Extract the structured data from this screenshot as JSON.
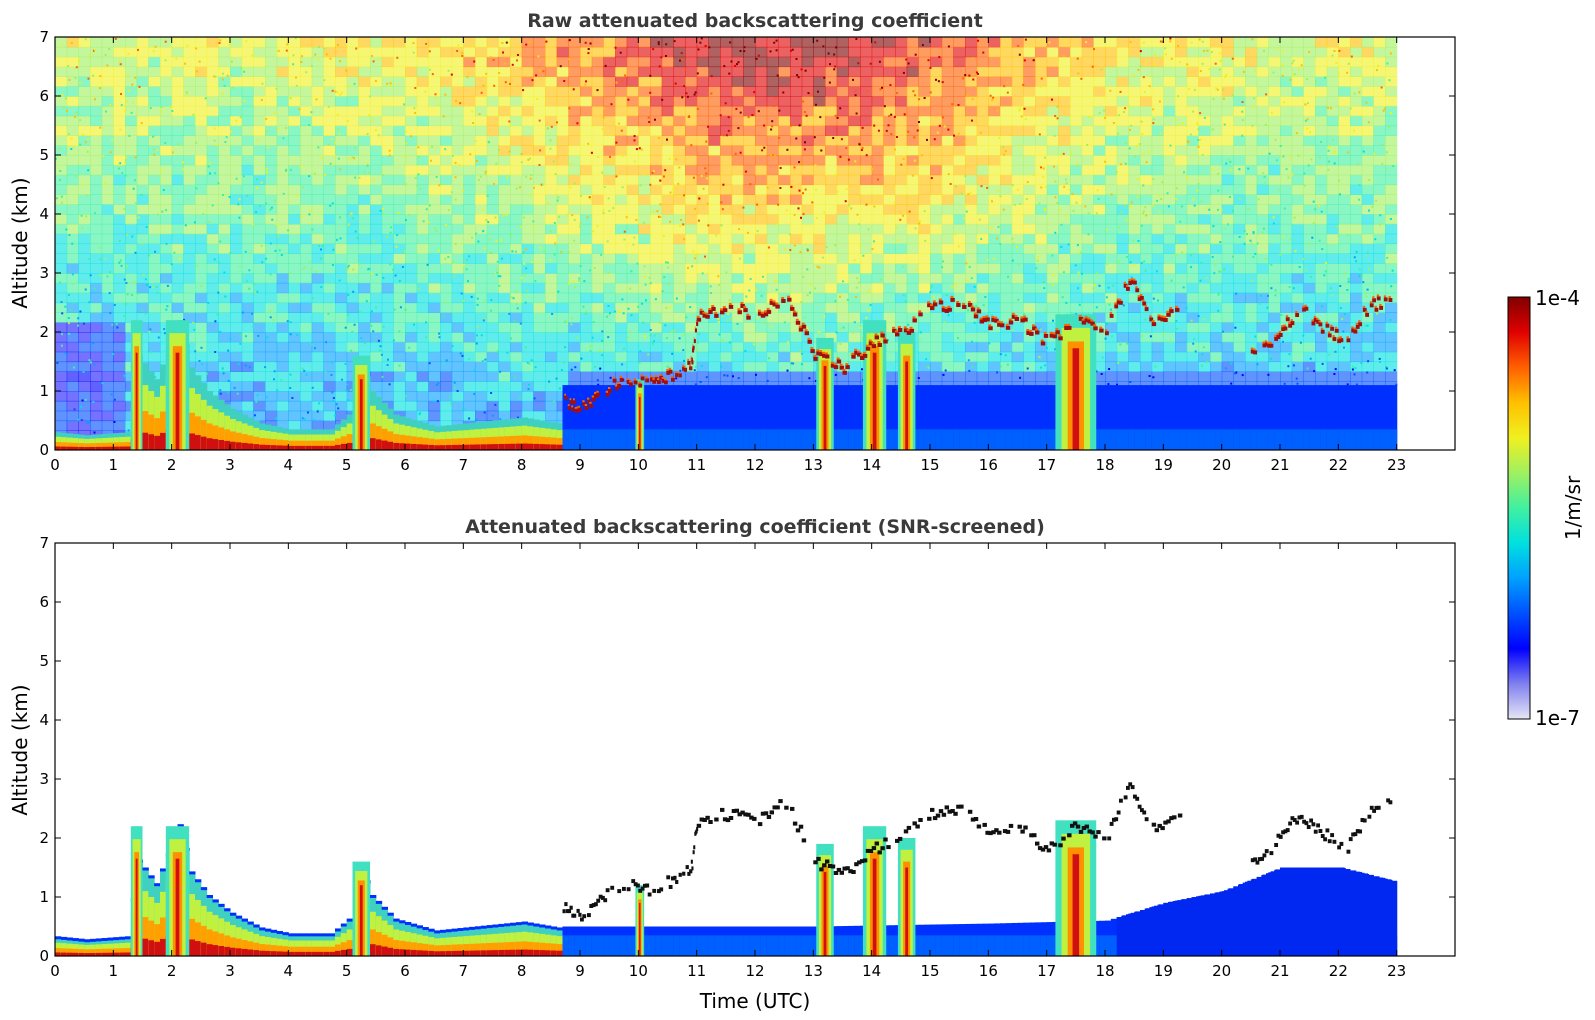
{
  "chart_data": {
    "type": "heatmap",
    "colorbar": {
      "label": "1/m/sr",
      "max_label": "1e-4",
      "min_label": "1e-7",
      "scale": "log",
      "range": [
        1e-07,
        0.0001
      ],
      "colormap": [
        "#e6e6f5",
        "#8080f0",
        "#0000ff",
        "#0050ff",
        "#00a0ff",
        "#00e0e0",
        "#40f0a0",
        "#a0f060",
        "#f0f020",
        "#ffc000",
        "#ff6000",
        "#e00000",
        "#800000"
      ]
    },
    "panels": [
      {
        "id": "raw",
        "title": "Raw attenuated backscattering coefficient",
        "ylabel": "Altitude (km)",
        "xlabel": "",
        "xlim": [
          0,
          24
        ],
        "ylim": [
          0,
          7
        ],
        "xticks": [
          "0",
          "1",
          "2",
          "3",
          "4",
          "5",
          "6",
          "7",
          "8",
          "9",
          "10",
          "11",
          "12",
          "13",
          "14",
          "15",
          "16",
          "17",
          "18",
          "19",
          "20",
          "21",
          "22",
          "23"
        ],
        "yticks": [
          "0",
          "1",
          "2",
          "3",
          "4",
          "5",
          "6",
          "7"
        ],
        "data_end_time": 23
      },
      {
        "id": "screened",
        "title": "Attenuated backscattering coefficient (SNR-screened)",
        "ylabel": "Altitude (km)",
        "xlabel": "Time (UTC)",
        "xlim": [
          0,
          24
        ],
        "ylim": [
          0,
          7
        ],
        "xticks": [
          "0",
          "1",
          "2",
          "3",
          "4",
          "5",
          "6",
          "7",
          "8",
          "9",
          "10",
          "11",
          "12",
          "13",
          "14",
          "15",
          "16",
          "17",
          "18",
          "19",
          "20",
          "21",
          "22",
          "23"
        ],
        "yticks": [
          "0",
          "1",
          "2",
          "3",
          "4",
          "5",
          "6",
          "7"
        ],
        "data_end_time": 23
      }
    ],
    "features": {
      "boundary_layer_top_km": [
        [
          0,
          0.3
        ],
        [
          0.5,
          0.25
        ],
        [
          1.2,
          0.3
        ],
        [
          1.4,
          1.6
        ],
        [
          1.7,
          1.2
        ],
        [
          2.1,
          2.2
        ],
        [
          2.3,
          1.4
        ],
        [
          2.6,
          1.0
        ],
        [
          3.0,
          0.7
        ],
        [
          3.5,
          0.45
        ],
        [
          4.0,
          0.35
        ],
        [
          4.7,
          0.35
        ],
        [
          5.0,
          0.6
        ],
        [
          5.2,
          1.5
        ],
        [
          5.4,
          1.0
        ],
        [
          5.8,
          0.6
        ],
        [
          6.5,
          0.4
        ],
        [
          7.0,
          0.45
        ],
        [
          7.5,
          0.5
        ],
        [
          8.0,
          0.55
        ],
        [
          8.6,
          0.45
        ],
        [
          9.0,
          0.5
        ],
        [
          10.0,
          0.5
        ],
        [
          13.0,
          0.5
        ],
        [
          16.0,
          0.55
        ],
        [
          18.0,
          0.6
        ],
        [
          19.0,
          0.9
        ],
        [
          20.0,
          1.1
        ],
        [
          21.0,
          1.5
        ],
        [
          22.0,
          1.5
        ],
        [
          23.0,
          1.25
        ]
      ],
      "column_events_hours": [
        [
          1.3,
          1.5,
          2.2
        ],
        [
          1.9,
          2.3,
          2.2
        ],
        [
          5.1,
          5.4,
          1.6
        ],
        [
          9.95,
          10.1,
          1.2
        ],
        [
          13.05,
          13.35,
          1.9
        ],
        [
          13.85,
          14.25,
          2.2
        ],
        [
          14.45,
          14.75,
          2.0
        ],
        [
          17.15,
          17.85,
          2.3
        ]
      ],
      "cloud_layer_km": [
        [
          8.7,
          0.8
        ],
        [
          9.0,
          0.7
        ],
        [
          9.4,
          1.0
        ],
        [
          9.8,
          1.2
        ],
        [
          10.2,
          1.1
        ],
        [
          10.6,
          1.3
        ],
        [
          10.9,
          1.5
        ],
        [
          11.0,
          2.3
        ],
        [
          11.5,
          2.4
        ],
        [
          12.0,
          2.3
        ],
        [
          12.5,
          2.6
        ],
        [
          13.0,
          1.6
        ],
        [
          13.5,
          1.4
        ],
        [
          14.0,
          1.8
        ],
        [
          14.5,
          2.0
        ],
        [
          15.0,
          2.4
        ],
        [
          15.5,
          2.5
        ],
        [
          16.0,
          2.1
        ],
        [
          16.5,
          2.2
        ],
        [
          17.0,
          1.8
        ],
        [
          17.5,
          2.2
        ],
        [
          18.0,
          2.0
        ],
        [
          18.4,
          2.9
        ],
        [
          18.8,
          2.2
        ],
        [
          19.3,
          2.4
        ]
      ],
      "late_cloud_km": [
        [
          20.5,
          1.6
        ],
        [
          20.9,
          1.9
        ],
        [
          21.3,
          2.4
        ],
        [
          21.7,
          2.1
        ],
        [
          22.1,
          1.8
        ],
        [
          22.5,
          2.4
        ],
        [
          22.9,
          2.6
        ]
      ]
    }
  }
}
